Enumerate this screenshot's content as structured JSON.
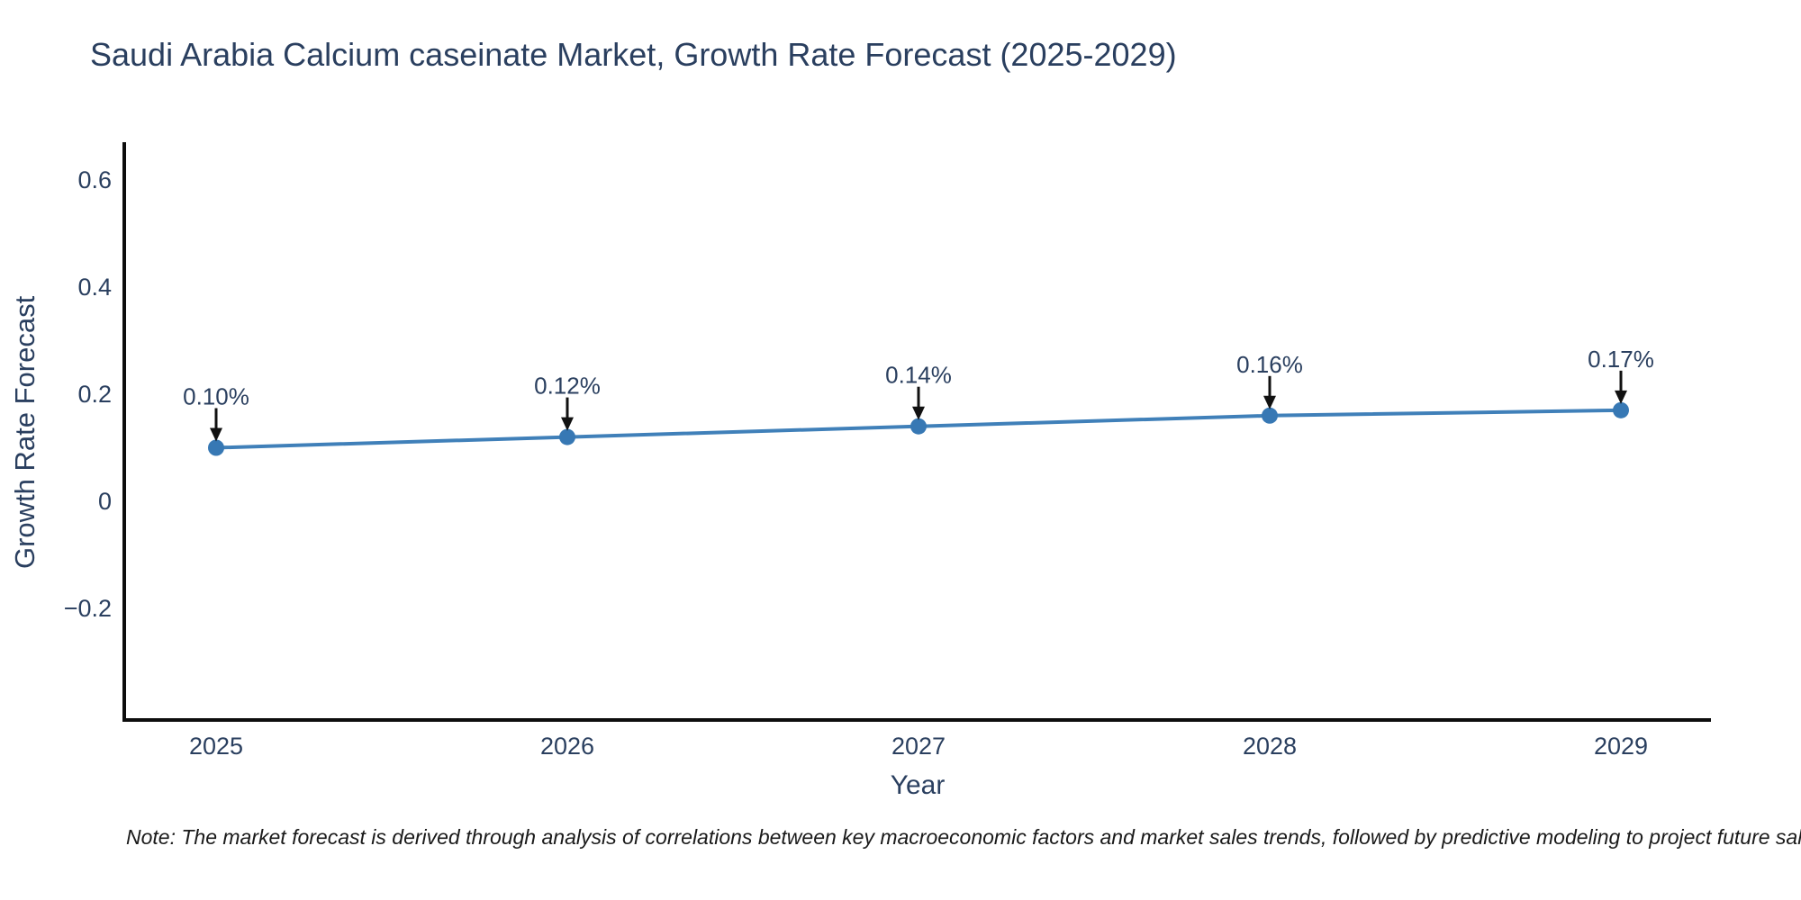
{
  "chart_data": {
    "type": "line",
    "title": "Saudi Arabia Calcium caseinate Market, Growth Rate Forecast (2025-2029)",
    "xlabel": "Year",
    "ylabel": "Growth Rate Forecast",
    "categories": [
      "2025",
      "2026",
      "2027",
      "2028",
      "2029"
    ],
    "values": [
      0.1,
      0.12,
      0.14,
      0.16,
      0.17
    ],
    "point_labels": [
      "0.10%",
      "0.12%",
      "0.14%",
      "0.16%",
      "0.17%"
    ],
    "series_unit": "percent",
    "yticks": [
      {
        "value": 0.6,
        "label": "0.6"
      },
      {
        "value": 0.4,
        "label": "0.4"
      },
      {
        "value": 0.2,
        "label": "0.2"
      },
      {
        "value": 0,
        "label": "0"
      },
      {
        "value": -0.2,
        "label": "−0.2"
      }
    ],
    "ylim": [
      -0.41,
      0.67
    ],
    "grid": false,
    "legend": false,
    "note": "Note: The market forecast is derived through analysis of correlations between key macroeconomic factors and market sales trends, followed by predictive modeling to project future sales",
    "colors": {
      "line": "#4080b9",
      "marker": "#3778b4",
      "text": "#2a3f5f",
      "axis": "#0d0d0d",
      "arrow": "#111111",
      "note_text": "#1a1a1a"
    }
  }
}
